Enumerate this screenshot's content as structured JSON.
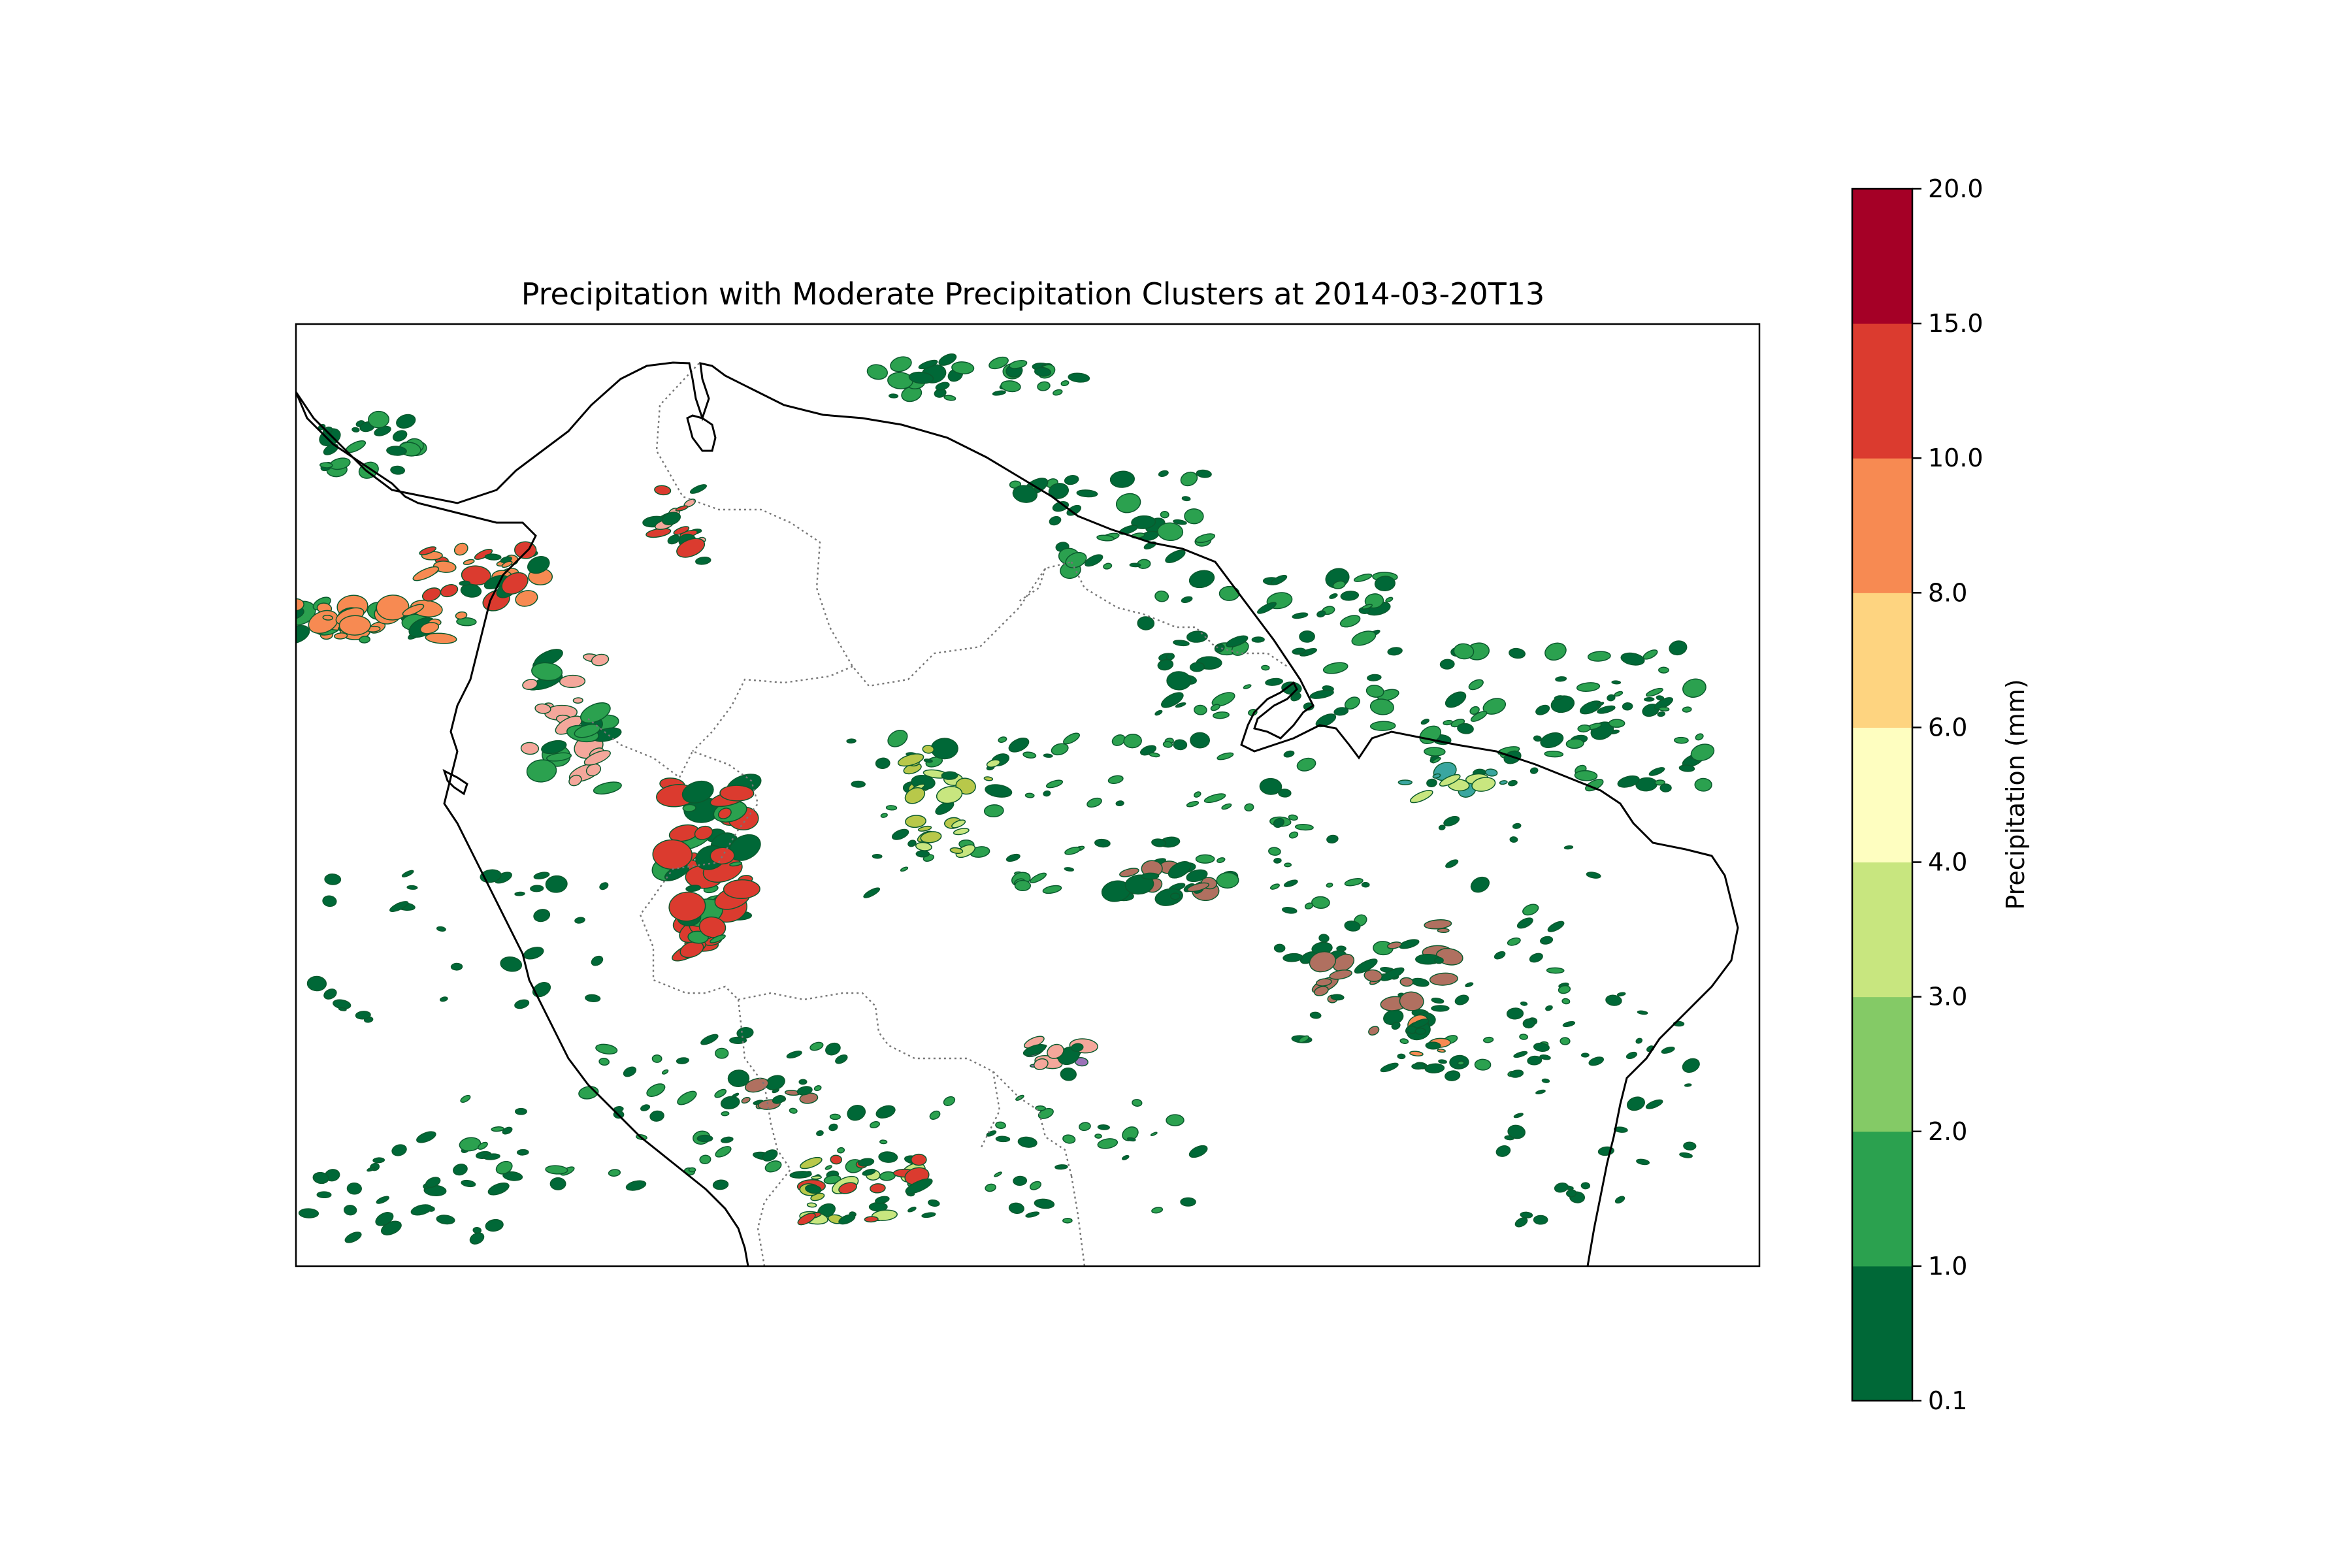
{
  "title": "Precipitation with Moderate Precipitation Clusters at 2014-03-20T13",
  "colorbar": {
    "label": "Precipitation (mm)",
    "levels": [
      {
        "value": "0.1",
        "color": "#006837"
      },
      {
        "value": "1.0",
        "color": "#2ba14f"
      },
      {
        "value": "2.0",
        "color": "#84ca66"
      },
      {
        "value": "3.0",
        "color": "#c8e67f"
      },
      {
        "value": "4.0",
        "color": "#fefec0"
      },
      {
        "value": "6.0",
        "color": "#fed480"
      },
      {
        "value": "8.0",
        "color": "#f78a52"
      },
      {
        "value": "10.0",
        "color": "#db3b2f"
      },
      {
        "value": "15.0",
        "color": "#a50026"
      },
      {
        "value": "20.0",
        "color": ""
      }
    ]
  },
  "map": {
    "cluster_colors": {
      "pink": "#f4a79b",
      "purple": "#9b73b8",
      "teal": "#3aa6a0",
      "brown": "#b07060",
      "olive": "#b8c84a"
    }
  }
}
